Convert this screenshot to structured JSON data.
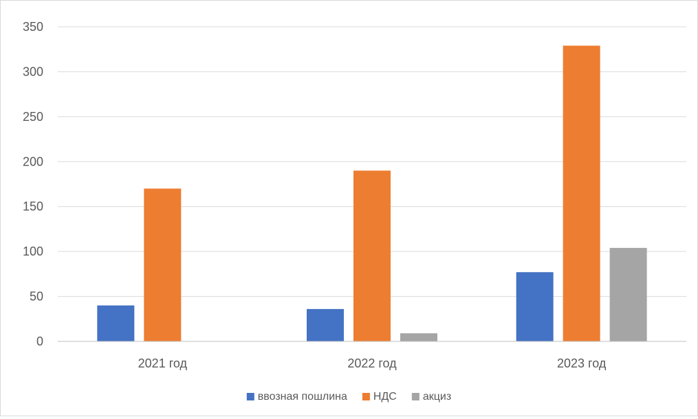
{
  "chart_data": {
    "type": "bar",
    "title": "",
    "xlabel": "",
    "ylabel": "",
    "categories": [
      "2021 год",
      "2022 год",
      "2023 год"
    ],
    "series": [
      {
        "name": "ввозная пошлина",
        "color": "#4472C4",
        "values": [
          40,
          36,
          77
        ]
      },
      {
        "name": "НДС",
        "color": "#ED7D31",
        "values": [
          170,
          190,
          329
        ]
      },
      {
        "name": "акциз",
        "color": "#A5A5A5",
        "values": [
          0,
          9,
          104
        ]
      }
    ],
    "ylim": [
      0,
      350
    ],
    "yticks": [
      "0",
      "50",
      "100",
      "150",
      "200",
      "250",
      "300",
      "350"
    ],
    "grid": true,
    "legend_position": "bottom"
  }
}
